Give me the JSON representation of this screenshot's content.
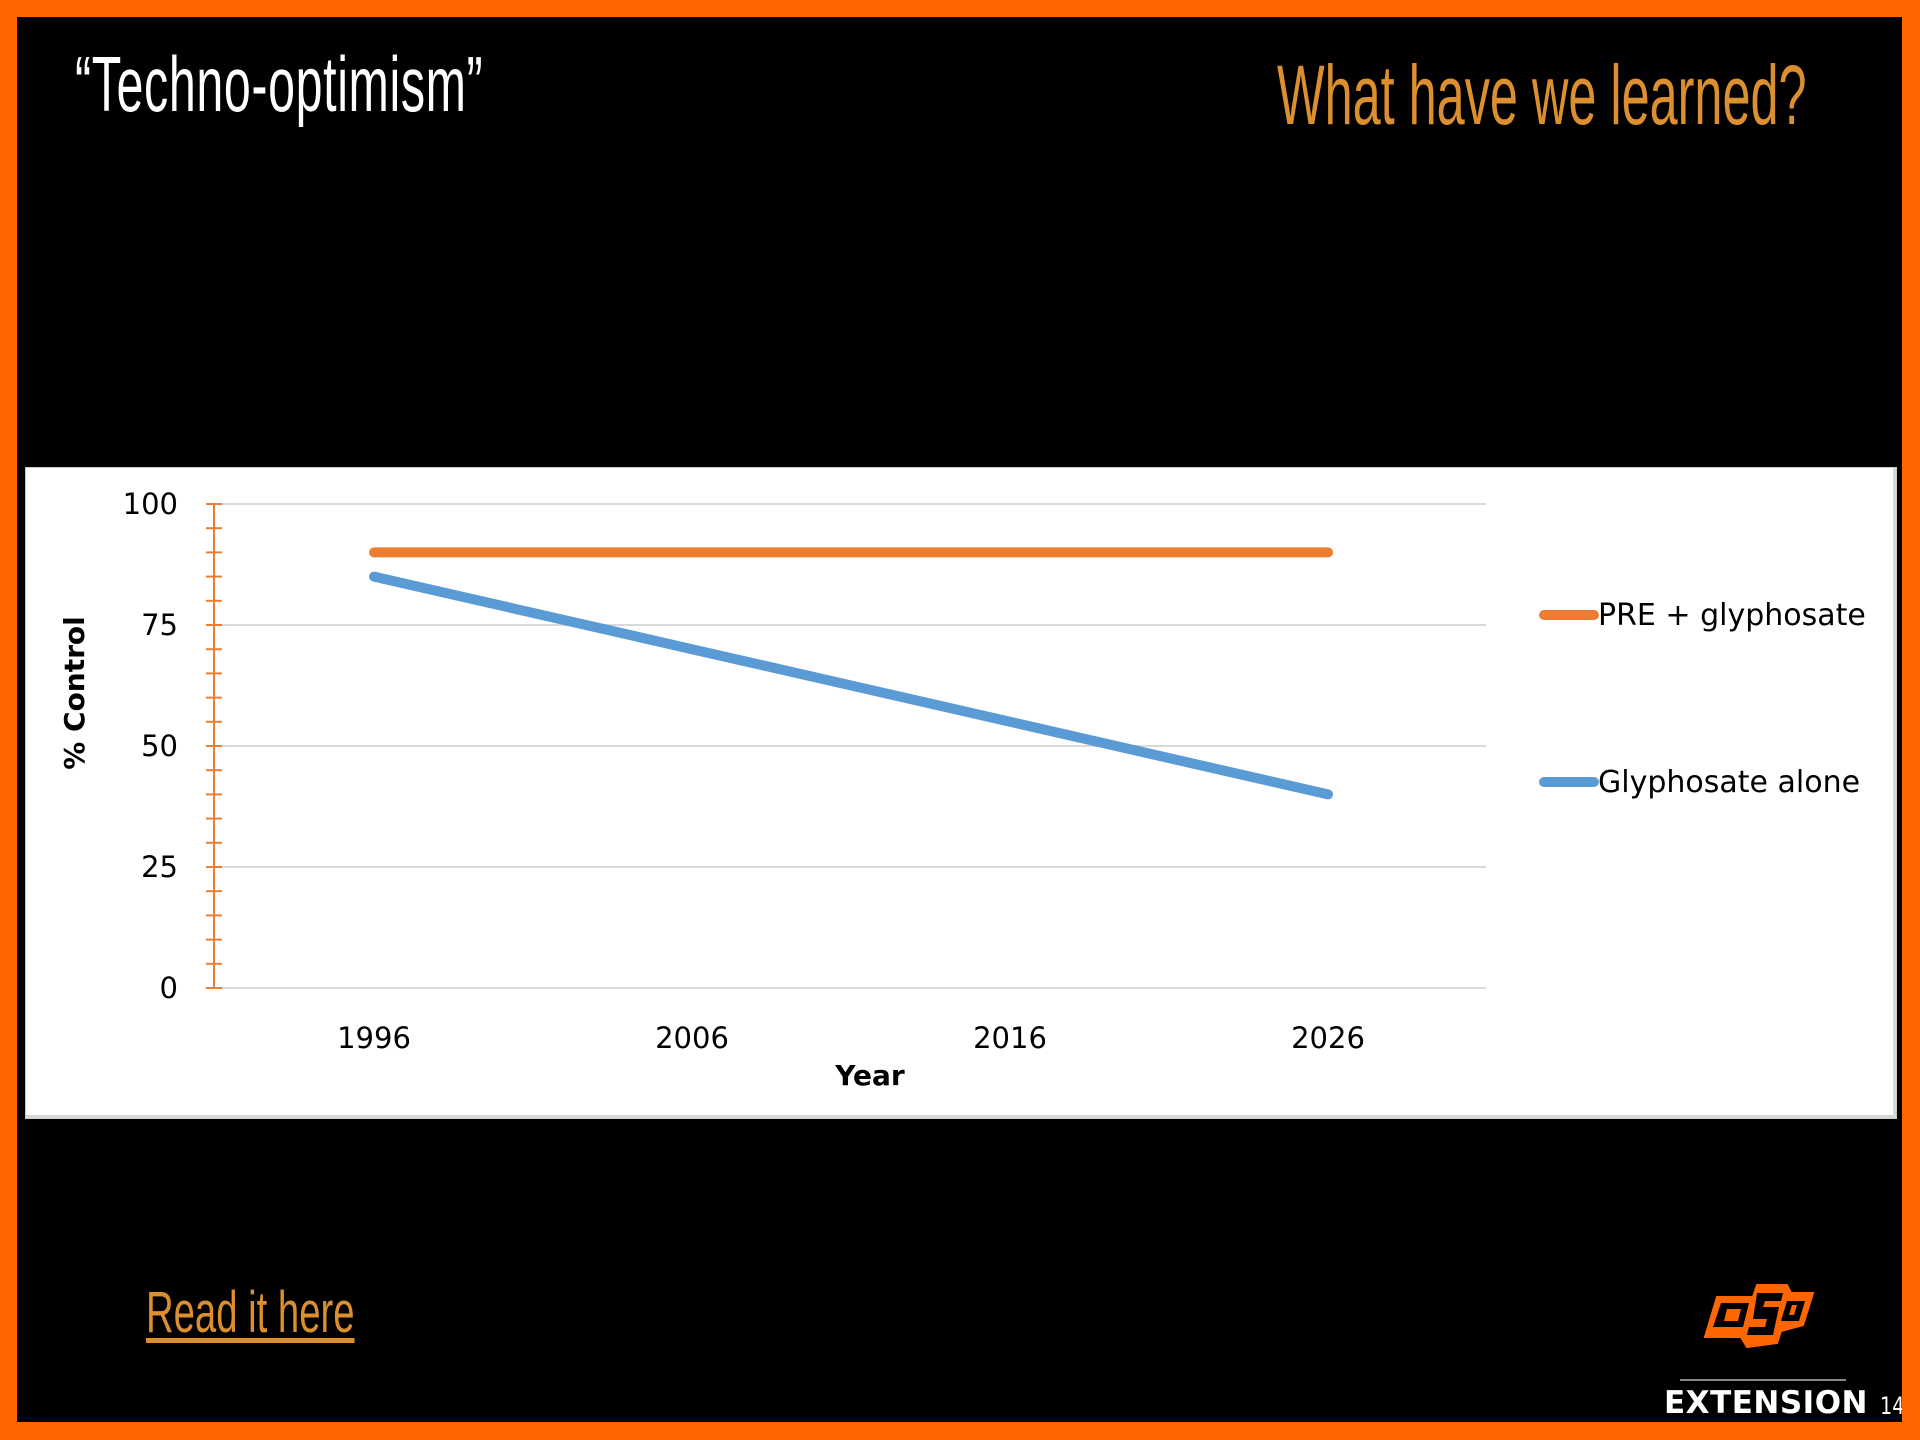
{
  "slide": {
    "title_left": "“Techno-optimism”",
    "title_right": "What have we learned?",
    "link_text": "Read it here",
    "footer": {
      "logo_text": "OSU",
      "extension_label": "EXTENSION",
      "page_number": "14"
    }
  },
  "colors": {
    "border": "#FF6600",
    "background": "#000000",
    "accent_title": "#DB8F2E",
    "series_pre": "#ED7D31",
    "series_gly": "#5B9BD5",
    "axis": "#ED7D31",
    "grid": "#D9D9D9"
  },
  "chart_data": {
    "type": "line",
    "title": "",
    "xlabel": "Year",
    "ylabel": "% Control",
    "x": [
      "1996",
      "2006",
      "2016",
      "2026"
    ],
    "ylim": [
      0,
      100
    ],
    "yticks": [
      0,
      25,
      50,
      75,
      100
    ],
    "yticks_labels": [
      "0",
      "25",
      "50",
      "75",
      "100"
    ],
    "minor_tick_step": 5,
    "grid": true,
    "legend_position": "right",
    "series": [
      {
        "name": "PRE + glyphosate",
        "values": [
          90,
          90,
          90,
          90
        ],
        "color": "#ED7D31"
      },
      {
        "name": "Glyphosate alone",
        "values": [
          85,
          70,
          55,
          40
        ],
        "color": "#5B9BD5"
      }
    ]
  }
}
